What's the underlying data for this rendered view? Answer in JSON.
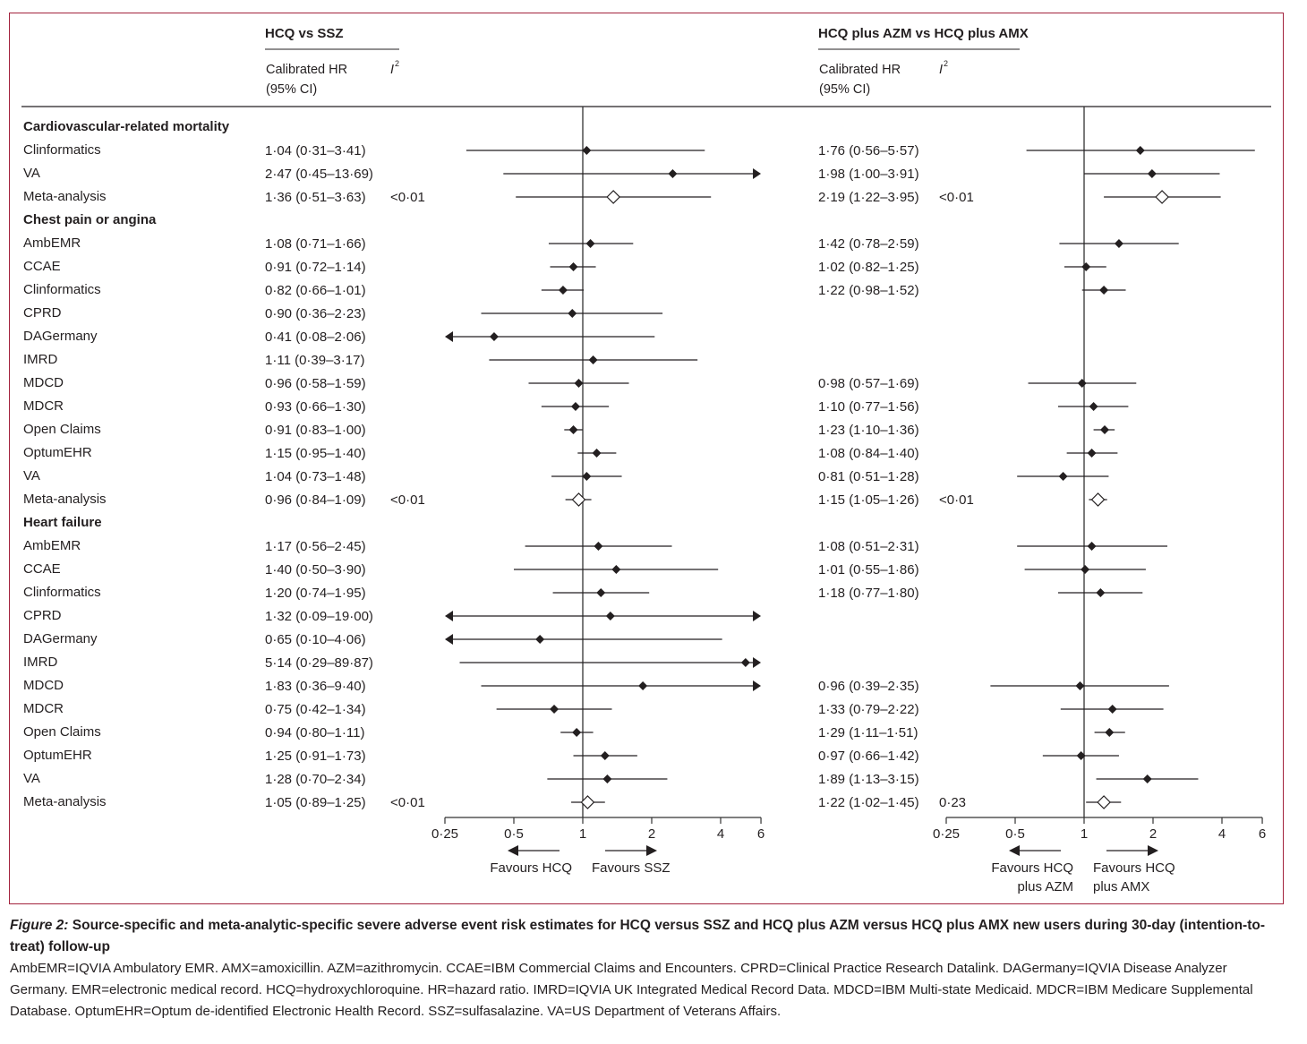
{
  "chart_data": {
    "type": "forest",
    "x_scale": "log",
    "reference_value": 1,
    "ticks": [
      0.25,
      0.5,
      1,
      2,
      4,
      6
    ],
    "tick_labels": [
      "0·25",
      "0·5",
      "1",
      "2",
      "4",
      "6"
    ],
    "xlim": [
      0.25,
      6
    ],
    "panels": [
      {
        "title": "HCQ vs SSZ",
        "col_hr": "Calibrated HR",
        "col_hr2": "(95% CI)",
        "col_i2": "I",
        "favours_left": [
          "Favours HCQ"
        ],
        "favours_right": [
          "Favours SSZ"
        ]
      },
      {
        "title": "HCQ plus AZM vs HCQ plus AMX",
        "col_hr": "Calibrated HR",
        "col_hr2": "(95% CI)",
        "col_i2": "I",
        "favours_left": [
          "Favours HCQ",
          "plus AZM"
        ],
        "favours_right": [
          "Favours HCQ",
          "plus AMX"
        ]
      }
    ],
    "sections": [
      {
        "name": "Cardiovascular-related mortality",
        "rows": [
          {
            "label": "Clinformatics",
            "meta": false,
            "a": {
              "text": "1·04 (0·31–3·41)",
              "hr": 1.04,
              "lo": 0.31,
              "hi": 3.41,
              "i2": ""
            },
            "b": {
              "text": "1·76 (0·56–5·57)",
              "hr": 1.76,
              "lo": 0.56,
              "hi": 5.57,
              "i2": ""
            }
          },
          {
            "label": "VA",
            "meta": false,
            "a": {
              "text": "2·47 (0·45–13·69)",
              "hr": 2.47,
              "lo": 0.45,
              "hi": 13.69,
              "i2": ""
            },
            "b": {
              "text": "1·98 (1·00–3·91)",
              "hr": 1.98,
              "lo": 1.0,
              "hi": 3.91,
              "i2": ""
            }
          },
          {
            "label": "Meta-analysis",
            "meta": true,
            "a": {
              "text": "1·36 (0·51–3·63)",
              "hr": 1.36,
              "lo": 0.51,
              "hi": 3.63,
              "i2": "<0·01"
            },
            "b": {
              "text": "2·19 (1·22–3·95)",
              "hr": 2.19,
              "lo": 1.22,
              "hi": 3.95,
              "i2": "<0·01"
            }
          }
        ]
      },
      {
        "name": "Chest pain or angina",
        "rows": [
          {
            "label": "AmbEMR",
            "meta": false,
            "a": {
              "text": "1·08 (0·71–1·66)",
              "hr": 1.08,
              "lo": 0.71,
              "hi": 1.66,
              "i2": ""
            },
            "b": {
              "text": "1·42 (0·78–2·59)",
              "hr": 1.42,
              "lo": 0.78,
              "hi": 2.59,
              "i2": ""
            }
          },
          {
            "label": "CCAE",
            "meta": false,
            "a": {
              "text": "0·91 (0·72–1·14)",
              "hr": 0.91,
              "lo": 0.72,
              "hi": 1.14,
              "i2": ""
            },
            "b": {
              "text": "1·02 (0·82–1·25)",
              "hr": 1.02,
              "lo": 0.82,
              "hi": 1.25,
              "i2": ""
            }
          },
          {
            "label": "Clinformatics",
            "meta": false,
            "a": {
              "text": "0·82 (0·66–1·01)",
              "hr": 0.82,
              "lo": 0.66,
              "hi": 1.01,
              "i2": ""
            },
            "b": {
              "text": "1·22 (0·98–1·52)",
              "hr": 1.22,
              "lo": 0.98,
              "hi": 1.52,
              "i2": ""
            }
          },
          {
            "label": "CPRD",
            "meta": false,
            "a": {
              "text": "0·90 (0·36–2·23)",
              "hr": 0.9,
              "lo": 0.36,
              "hi": 2.23,
              "i2": ""
            },
            "b": null
          },
          {
            "label": "DAGermany",
            "meta": false,
            "a": {
              "text": "0·41 (0·08–2·06)",
              "hr": 0.41,
              "lo": 0.08,
              "hi": 2.06,
              "i2": ""
            },
            "b": null
          },
          {
            "label": "IMRD",
            "meta": false,
            "a": {
              "text": "1·11 (0·39–3·17)",
              "hr": 1.11,
              "lo": 0.39,
              "hi": 3.17,
              "i2": ""
            },
            "b": null
          },
          {
            "label": "MDCD",
            "meta": false,
            "a": {
              "text": "0·96 (0·58–1·59)",
              "hr": 0.96,
              "lo": 0.58,
              "hi": 1.59,
              "i2": ""
            },
            "b": {
              "text": "0·98 (0·57–1·69)",
              "hr": 0.98,
              "lo": 0.57,
              "hi": 1.69,
              "i2": ""
            }
          },
          {
            "label": "MDCR",
            "meta": false,
            "a": {
              "text": "0·93 (0·66–1·30)",
              "hr": 0.93,
              "lo": 0.66,
              "hi": 1.3,
              "i2": ""
            },
            "b": {
              "text": "1·10 (0·77–1·56)",
              "hr": 1.1,
              "lo": 0.77,
              "hi": 1.56,
              "i2": ""
            }
          },
          {
            "label": "Open Claims",
            "meta": false,
            "a": {
              "text": "0·91 (0·83–1·00)",
              "hr": 0.91,
              "lo": 0.83,
              "hi": 1.0,
              "i2": ""
            },
            "b": {
              "text": "1·23 (1·10–1·36)",
              "hr": 1.23,
              "lo": 1.1,
              "hi": 1.36,
              "i2": ""
            }
          },
          {
            "label": "OptumEHR",
            "meta": false,
            "a": {
              "text": "1·15 (0·95–1·40)",
              "hr": 1.15,
              "lo": 0.95,
              "hi": 1.4,
              "i2": ""
            },
            "b": {
              "text": "1·08 (0·84–1·40)",
              "hr": 1.08,
              "lo": 0.84,
              "hi": 1.4,
              "i2": ""
            }
          },
          {
            "label": "VA",
            "meta": false,
            "a": {
              "text": "1·04 (0·73–1·48)",
              "hr": 1.04,
              "lo": 0.73,
              "hi": 1.48,
              "i2": ""
            },
            "b": {
              "text": "0·81 (0·51–1·28)",
              "hr": 0.81,
              "lo": 0.51,
              "hi": 1.28,
              "i2": ""
            }
          },
          {
            "label": "Meta-analysis",
            "meta": true,
            "a": {
              "text": "0·96 (0·84–1·09)",
              "hr": 0.96,
              "lo": 0.84,
              "hi": 1.09,
              "i2": "<0·01"
            },
            "b": {
              "text": "1·15 (1·05–1·26)",
              "hr": 1.15,
              "lo": 1.05,
              "hi": 1.26,
              "i2": "<0·01"
            }
          }
        ]
      },
      {
        "name": "Heart failure",
        "rows": [
          {
            "label": "AmbEMR",
            "meta": false,
            "a": {
              "text": "1·17 (0·56–2·45)",
              "hr": 1.17,
              "lo": 0.56,
              "hi": 2.45,
              "i2": ""
            },
            "b": {
              "text": "1·08 (0·51–2·31)",
              "hr": 1.08,
              "lo": 0.51,
              "hi": 2.31,
              "i2": ""
            }
          },
          {
            "label": "CCAE",
            "meta": false,
            "a": {
              "text": "1·40 (0·50–3·90)",
              "hr": 1.4,
              "lo": 0.5,
              "hi": 3.9,
              "i2": ""
            },
            "b": {
              "text": "1·01 (0·55–1·86)",
              "hr": 1.01,
              "lo": 0.55,
              "hi": 1.86,
              "i2": ""
            }
          },
          {
            "label": "Clinformatics",
            "meta": false,
            "a": {
              "text": "1·20 (0·74–1·95)",
              "hr": 1.2,
              "lo": 0.74,
              "hi": 1.95,
              "i2": ""
            },
            "b": {
              "text": "1·18 (0·77–1·80)",
              "hr": 1.18,
              "lo": 0.77,
              "hi": 1.8,
              "i2": ""
            }
          },
          {
            "label": "CPRD",
            "meta": false,
            "a": {
              "text": "1·32 (0·09–19·00)",
              "hr": 1.32,
              "lo": 0.09,
              "hi": 19.0,
              "i2": ""
            },
            "b": null
          },
          {
            "label": "DAGermany",
            "meta": false,
            "a": {
              "text": "0·65 (0·10–4·06)",
              "hr": 0.65,
              "lo": 0.1,
              "hi": 4.06,
              "i2": ""
            },
            "b": null
          },
          {
            "label": "IMRD",
            "meta": false,
            "a": {
              "text": "5·14 (0·29–89·87)",
              "hr": 5.14,
              "lo": 0.29,
              "hi": 89.87,
              "i2": ""
            },
            "b": null
          },
          {
            "label": "MDCD",
            "meta": false,
            "a": {
              "text": "1·83 (0·36–9·40)",
              "hr": 1.83,
              "lo": 0.36,
              "hi": 9.4,
              "i2": ""
            },
            "b": {
              "text": "0·96 (0·39–2·35)",
              "hr": 0.96,
              "lo": 0.39,
              "hi": 2.35,
              "i2": ""
            }
          },
          {
            "label": "MDCR",
            "meta": false,
            "a": {
              "text": "0·75 (0·42–1·34)",
              "hr": 0.75,
              "lo": 0.42,
              "hi": 1.34,
              "i2": ""
            },
            "b": {
              "text": "1·33 (0·79–2·22)",
              "hr": 1.33,
              "lo": 0.79,
              "hi": 2.22,
              "i2": ""
            }
          },
          {
            "label": "Open Claims",
            "meta": false,
            "a": {
              "text": "0·94 (0·80–1·11)",
              "hr": 0.94,
              "lo": 0.8,
              "hi": 1.11,
              "i2": ""
            },
            "b": {
              "text": "1·29 (1·11–1·51)",
              "hr": 1.29,
              "lo": 1.11,
              "hi": 1.51,
              "i2": ""
            }
          },
          {
            "label": "OptumEHR",
            "meta": false,
            "a": {
              "text": "1·25 (0·91–1·73)",
              "hr": 1.25,
              "lo": 0.91,
              "hi": 1.73,
              "i2": ""
            },
            "b": {
              "text": "0·97 (0·66–1·42)",
              "hr": 0.97,
              "lo": 0.66,
              "hi": 1.42,
              "i2": ""
            }
          },
          {
            "label": "VA",
            "meta": false,
            "a": {
              "text": "1·28 (0·70–2·34)",
              "hr": 1.28,
              "lo": 0.7,
              "hi": 2.34,
              "i2": ""
            },
            "b": {
              "text": "1·89 (1·13–3·15)",
              "hr": 1.89,
              "lo": 1.13,
              "hi": 3.15,
              "i2": ""
            }
          },
          {
            "label": "Meta-analysis",
            "meta": true,
            "a": {
              "text": "1·05 (0·89–1·25)",
              "hr": 1.05,
              "lo": 0.89,
              "hi": 1.25,
              "i2": "<0·01"
            },
            "b": {
              "text": "1·22 (1·02–1·45)",
              "hr": 1.22,
              "lo": 1.02,
              "hi": 1.45,
              "i2": "0·23"
            }
          }
        ]
      }
    ]
  },
  "caption": {
    "figure_label": "Figure 2:",
    "title": " Source-specific and meta-analytic-specific severe adverse event risk estimates for HCQ versus SSZ and HCQ plus AZM versus HCQ plus AMX new users during 30-day (intention-to-treat) follow-up",
    "abbreviations": "AmbEMR=IQVIA Ambulatory EMR. AMX=amoxicillin. AZM=azithromycin. CCAE=IBM Commercial Claims and Encounters. CPRD=Clinical Practice Research Datalink. DAGermany=IQVIA Disease Analyzer Germany. EMR=electronic medical record. HCQ=hydroxychloroquine. HR=hazard ratio. IMRD=IQVIA UK Integrated Medical Record Data. MDCD=IBM Multi-state Medicaid. MDCR=IBM Medicare Supplemental Database. OptumEHR=Optum de-identified Electronic Health Record. SSZ=sulfasalazine. VA=US Department of Veterans Affairs."
  },
  "colors": {
    "frame_border": "#a3233d",
    "ink": "#231f20",
    "reference_line": "#555555"
  }
}
